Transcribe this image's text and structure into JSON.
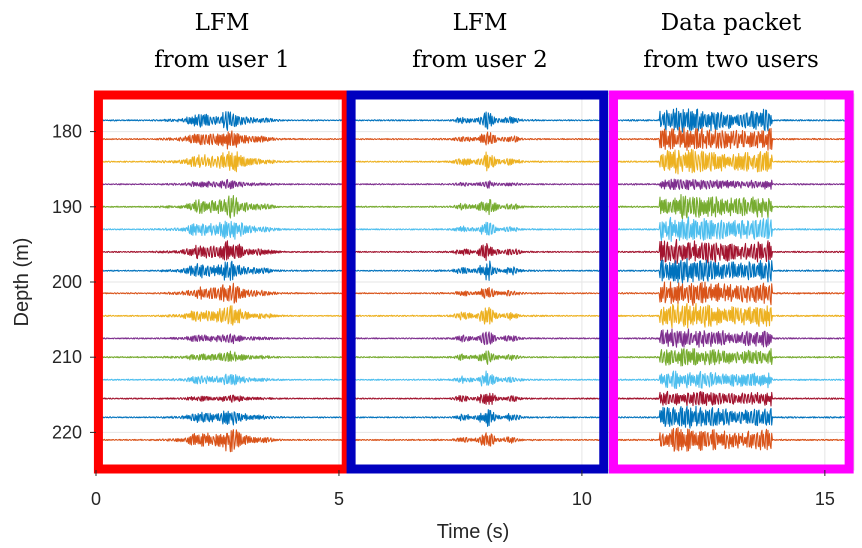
{
  "chart_data": {
    "type": "line",
    "xlabel": "Time (s)",
    "ylabel": "Depth (m)",
    "xlim": [
      0,
      15.6
    ],
    "ylim": [
      225,
      175
    ],
    "grid": true,
    "xticks": [
      0,
      5,
      10,
      15
    ],
    "yticks": [
      180,
      190,
      200,
      210,
      220
    ],
    "panel_titles": [
      {
        "line1": "LFM",
        "line2": "from user 1"
      },
      {
        "line1": "LFM",
        "line2": "from user 2"
      },
      {
        "line1": "Data packet",
        "line2": "from two users"
      }
    ],
    "panels": [
      {
        "name": "LFM from user 1",
        "x_range": [
          0.05,
          5.15
        ],
        "color": "#ff0000"
      },
      {
        "name": "LFM from user 2",
        "x_range": [
          5.25,
          10.45
        ],
        "color": "#0000bf"
      },
      {
        "name": "Data packet from two users",
        "x_range": [
          10.65,
          15.5
        ],
        "color": "#ff00ff"
      }
    ],
    "series_colors": [
      "#0072bd",
      "#d95319",
      "#edb120",
      "#7e2f8e",
      "#77ac30",
      "#4dbeee",
      "#a2142f"
    ],
    "traces": [
      {
        "depth": 178.5,
        "u1_amp": 0.9,
        "u2_amp": 0.7,
        "packet_amp": 1.0
      },
      {
        "depth": 181.0,
        "u1_amp": 1.0,
        "u2_amp": 0.6,
        "packet_amp": 1.0
      },
      {
        "depth": 184.0,
        "u1_amp": 1.0,
        "u2_amp": 0.8,
        "packet_amp": 1.0
      },
      {
        "depth": 187.0,
        "u1_amp": 0.4,
        "u2_amp": 0.3,
        "packet_amp": 0.4
      },
      {
        "depth": 190.0,
        "u1_amp": 1.0,
        "u2_amp": 0.7,
        "packet_amp": 1.0
      },
      {
        "depth": 193.0,
        "u1_amp": 1.0,
        "u2_amp": 0.6,
        "packet_amp": 1.0
      },
      {
        "depth": 196.0,
        "u1_amp": 1.0,
        "u2_amp": 0.7,
        "packet_amp": 1.0
      },
      {
        "depth": 198.5,
        "u1_amp": 1.0,
        "u2_amp": 0.8,
        "packet_amp": 1.0
      },
      {
        "depth": 201.5,
        "u1_amp": 0.9,
        "u2_amp": 0.5,
        "packet_amp": 1.0
      },
      {
        "depth": 204.5,
        "u1_amp": 0.9,
        "u2_amp": 0.8,
        "packet_amp": 1.0
      },
      {
        "depth": 207.5,
        "u1_amp": 0.5,
        "u2_amp": 0.6,
        "packet_amp": 0.8
      },
      {
        "depth": 210.0,
        "u1_amp": 0.5,
        "u2_amp": 0.6,
        "packet_amp": 0.7
      },
      {
        "depth": 213.0,
        "u1_amp": 0.5,
        "u2_amp": 0.7,
        "packet_amp": 0.7
      },
      {
        "depth": 215.5,
        "u1_amp": 0.3,
        "u2_amp": 0.6,
        "packet_amp": 0.6
      },
      {
        "depth": 218.0,
        "u1_amp": 0.7,
        "u2_amp": 0.7,
        "packet_amp": 0.9
      },
      {
        "depth": 221.0,
        "u1_amp": 1.0,
        "u2_amp": 0.6,
        "packet_amp": 1.0
      }
    ]
  }
}
